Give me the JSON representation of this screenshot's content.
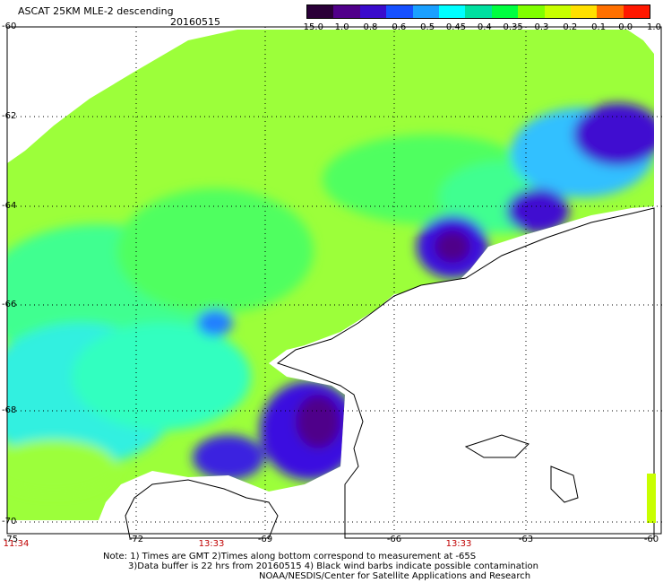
{
  "header": {
    "title": "ASCAT 25KM MLE-2 descending",
    "date": "20160515"
  },
  "colorbar": {
    "labels": [
      "-15.0",
      "-1.0",
      "-0.8",
      "-0.6",
      "-0.5",
      "-0.45",
      "-0.4",
      "-0.35",
      "-0.3",
      "-0.2",
      "-0.1",
      "0.0",
      "1.0"
    ],
    "colors": [
      "#2a0038",
      "#50008a",
      "#3a0ccc",
      "#1650ff",
      "#1aa0ff",
      "#00ffff",
      "#00e0a0",
      "#00ff40",
      "#80ff00",
      "#c8ff00",
      "#ffe000",
      "#ff7000",
      "#ff1800"
    ]
  },
  "axes": {
    "lat_labels": [
      "-60",
      "-62",
      "-64",
      "-66",
      "-68",
      "-70"
    ],
    "lon_labels": [
      "-75",
      "-72",
      "-69",
      "-66",
      "-63",
      "-60"
    ],
    "times": [
      "11:34",
      "13:33",
      "13:33"
    ]
  },
  "notes": {
    "line1": "Note: 1) Times are GMT 2)Times along bottom correspond to measurement at -65S",
    "line2": "3)Data buffer is 22 hrs from 20160515 4) Black wind barbs indicate possible contamination",
    "line3": "NOAA/NESDIS/Center for Satellite Applications and Research"
  }
}
